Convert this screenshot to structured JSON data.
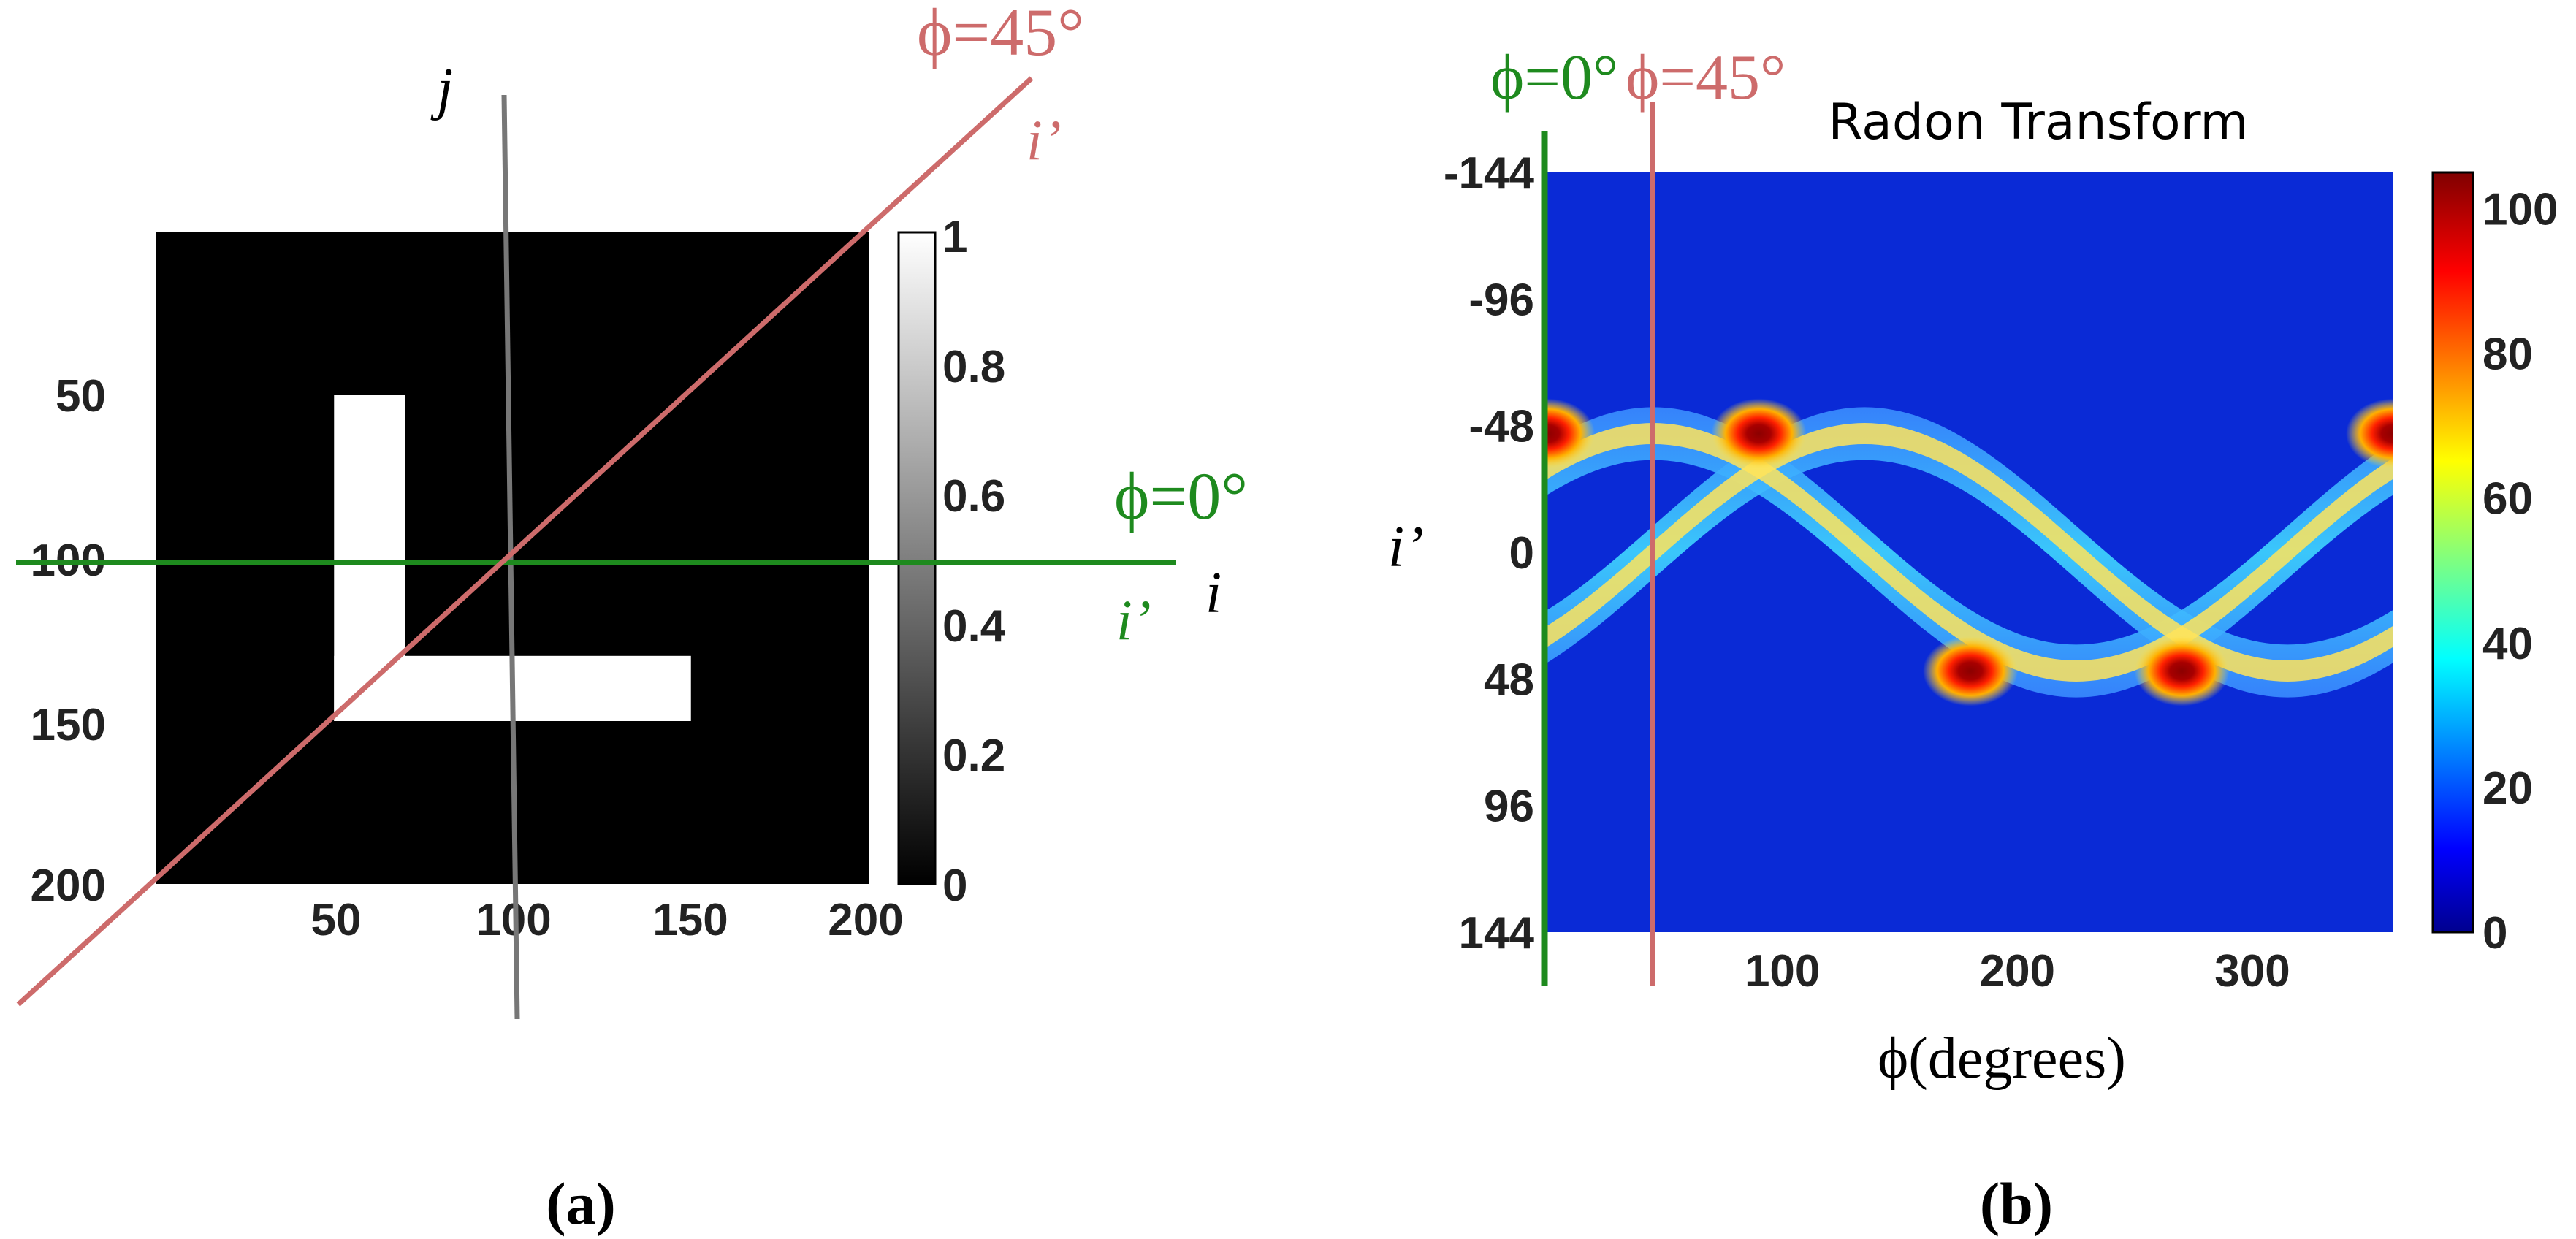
{
  "chart_data": [
    {
      "panel": "a",
      "type": "heatmap",
      "subtitle": "(a)",
      "description_of_data": "binary L-shaped image on 200x200 grid",
      "xlim": [
        0,
        200
      ],
      "ylim": [
        0,
        200
      ],
      "x_ticks": [
        "50",
        "100",
        "150",
        "200"
      ],
      "y_ticks": [
        "50",
        "100",
        "150",
        "200"
      ],
      "shapes": [
        {
          "name": "vertical-bar",
          "i": [
            50,
            70
          ],
          "j": [
            50,
            150
          ],
          "value": 1
        },
        {
          "name": "horizontal-bar",
          "i": [
            50,
            150
          ],
          "j": [
            130,
            150
          ],
          "value": 1
        }
      ],
      "colorbar": {
        "range": [
          0,
          1
        ],
        "ticks": [
          "0",
          "0.2",
          "0.4",
          "0.6",
          "0.8",
          "1"
        ],
        "colormap": "gray"
      },
      "axis_labels": {
        "i": "i",
        "j": "j",
        "i_prime": "i’"
      },
      "annotations": {
        "phi0": "ϕ=0°",
        "phi45": "ϕ=45°",
        "i_prime_green": "i’",
        "i_prime_red": "i’"
      }
    },
    {
      "panel": "b",
      "type": "heatmap",
      "title": "Radon Transform",
      "subtitle": "(b)",
      "xlabel": "ϕ(degrees)",
      "ylabel": "i’",
      "xlim": [
        0,
        360
      ],
      "ylim": [
        -144,
        144
      ],
      "x_ticks": [
        "100",
        "200",
        "300"
      ],
      "x_tick_values": [
        100,
        200,
        300
      ],
      "y_ticks": [
        "-144",
        "-96",
        "-48",
        "0",
        "48",
        "96",
        "144"
      ],
      "y_tick_values": [
        -144,
        -96,
        -48,
        0,
        48,
        96,
        144
      ],
      "peaks": [
        {
          "phi": 0,
          "i_prime": -45,
          "value": 100
        },
        {
          "phi": 90,
          "i_prime": -45,
          "value": 100
        },
        {
          "phi": 180,
          "i_prime": 45,
          "value": 100
        },
        {
          "phi": 270,
          "i_prime": 45,
          "value": 100
        },
        {
          "phi": 360,
          "i_prime": -45,
          "value": 100
        }
      ],
      "colorbar": {
        "range": [
          0,
          105
        ],
        "ticks": [
          "0",
          "20",
          "40",
          "60",
          "80",
          "100"
        ],
        "colormap": "jet"
      },
      "markers": [
        {
          "label": "ϕ=0°",
          "phi": 0,
          "color": "#1e8a1e"
        },
        {
          "label": "ϕ=45°",
          "phi": 45,
          "color": "#cd6b6b"
        }
      ]
    }
  ],
  "colors": {
    "green": "#1e8a1e",
    "red": "#cd6b6b",
    "gray_line": "#777777",
    "background_blue": "#0a2ad6"
  },
  "labels": {
    "panel_a": "(a)",
    "panel_b": "(b)",
    "radon_title": "Radon Transform",
    "phi_axis": "ϕ(degrees)"
  }
}
